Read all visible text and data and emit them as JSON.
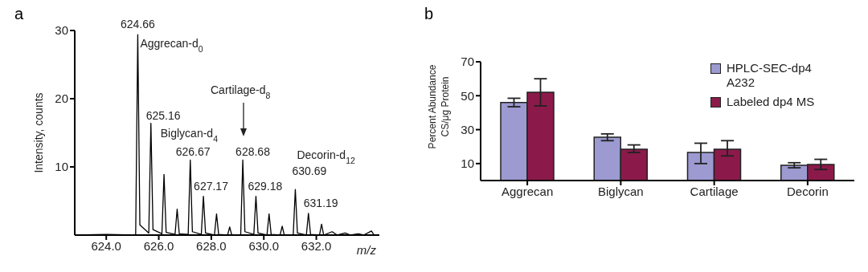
{
  "chart_data": [
    {
      "type": "line",
      "title": "a",
      "xlabel": "m/z",
      "ylabel": "Intensity, counts",
      "x": [
        622.8,
        624.0,
        625.12,
        625.2,
        625.28,
        625.62,
        625.7,
        625.78,
        626.12,
        626.2,
        626.28,
        626.62,
        626.7,
        626.78,
        627.12,
        627.2,
        627.28,
        627.62,
        627.7,
        627.78,
        628.12,
        628.2,
        628.28,
        628.62,
        628.7,
        628.78,
        629.12,
        629.2,
        629.28,
        629.62,
        629.7,
        629.78,
        630.12,
        630.2,
        630.28,
        630.62,
        630.7,
        630.78,
        631.12,
        631.2,
        631.28,
        631.62,
        631.7,
        631.78,
        632.12,
        632.2,
        632.28,
        632.6,
        632.8,
        633.1,
        633.3,
        633.6,
        633.8,
        634.1,
        634.2
      ],
      "series": [
        {
          "color": "#000000",
          "values": [
            0,
            0.1,
            0,
            29.4,
            1.5,
            0.3,
            16.4,
            0.8,
            0.2,
            8.9,
            0.4,
            0.1,
            3.8,
            0.2,
            0.1,
            11.0,
            0.5,
            0.1,
            5.7,
            0.3,
            0,
            3.1,
            0.1,
            0,
            1.2,
            0,
            0,
            11.0,
            0.5,
            0.1,
            5.7,
            0.3,
            0,
            3.1,
            0.1,
            0,
            1.3,
            0,
            0,
            6.7,
            0.3,
            0,
            3.2,
            0.1,
            0,
            1.6,
            0,
            0.5,
            0,
            0.3,
            0,
            0.2,
            0,
            0.6,
            0
          ]
        }
      ],
      "xlim": [
        622.8,
        634.4
      ],
      "xticks": [
        {
          "value": 624,
          "label": "624.0"
        },
        {
          "value": 626,
          "label": "626.0"
        },
        {
          "value": 628,
          "label": "628.0"
        },
        {
          "value": 630,
          "label": "630.0"
        },
        {
          "value": 632,
          "label": "632.0"
        }
      ],
      "ylim": [
        0,
        30
      ],
      "yticks": [
        10,
        20,
        30
      ],
      "annotations": [
        {
          "text": "624.66",
          "x": 625.2,
          "y": 29.4
        },
        {
          "text": "Aggrecan-d$_{0}$",
          "x": 625.2,
          "y": 29.4
        },
        {
          "text": "625.16",
          "x": 625.7,
          "y": 16.4
        },
        {
          "text": "Biglycan-d$_{4}$",
          "x": 627.2,
          "y": 11.0
        },
        {
          "text": "626.67",
          "x": 627.2,
          "y": 11.0
        },
        {
          "text": "627.17",
          "x": 627.7,
          "y": 5.7
        },
        "Cartilage-d$_{8}$",
        {
          "text": "628.68",
          "x": 629.2,
          "y": 11.0
        },
        {
          "text": "629.18",
          "x": 629.7,
          "y": 5.7
        },
        {
          "text": "Decorin-d$_{12}$",
          "x": 631.2,
          "y": 6.7
        },
        {
          "text": "630.69",
          "x": 631.2,
          "y": 6.7
        },
        {
          "text": "631.19",
          "x": 631.7,
          "y": 3.2
        }
      ]
    },
    {
      "type": "bar",
      "title": "b",
      "ylabel": "Percent Abundance\nCS/μg Protein",
      "categories": [
        "Aggrecan",
        "Biglycan",
        "Cartilage",
        "Decorin"
      ],
      "series": [
        {
          "name": "HPLC-SEC-dp4 A232",
          "color": "#9c9ad0",
          "values": [
            46,
            25.5,
            16.5,
            9
          ],
          "errors": [
            [
              43.5,
              48.5
            ],
            [
              23.5,
              27.5
            ],
            [
              10,
              22
            ],
            [
              7.5,
              10.5
            ]
          ]
        },
        {
          "name": "Labeled dp4 MS",
          "color": "#8b1a4a",
          "values": [
            52,
            18.5,
            18.5,
            9.5
          ],
          "errors": [
            [
              44,
              60
            ],
            [
              16.5,
              21
            ],
            [
              14.5,
              23.5
            ],
            [
              6.5,
              12.5
            ]
          ]
        }
      ],
      "ylim": [
        0,
        70
      ],
      "yticks": [
        10,
        30,
        50,
        70
      ],
      "legend": "top right"
    }
  ]
}
